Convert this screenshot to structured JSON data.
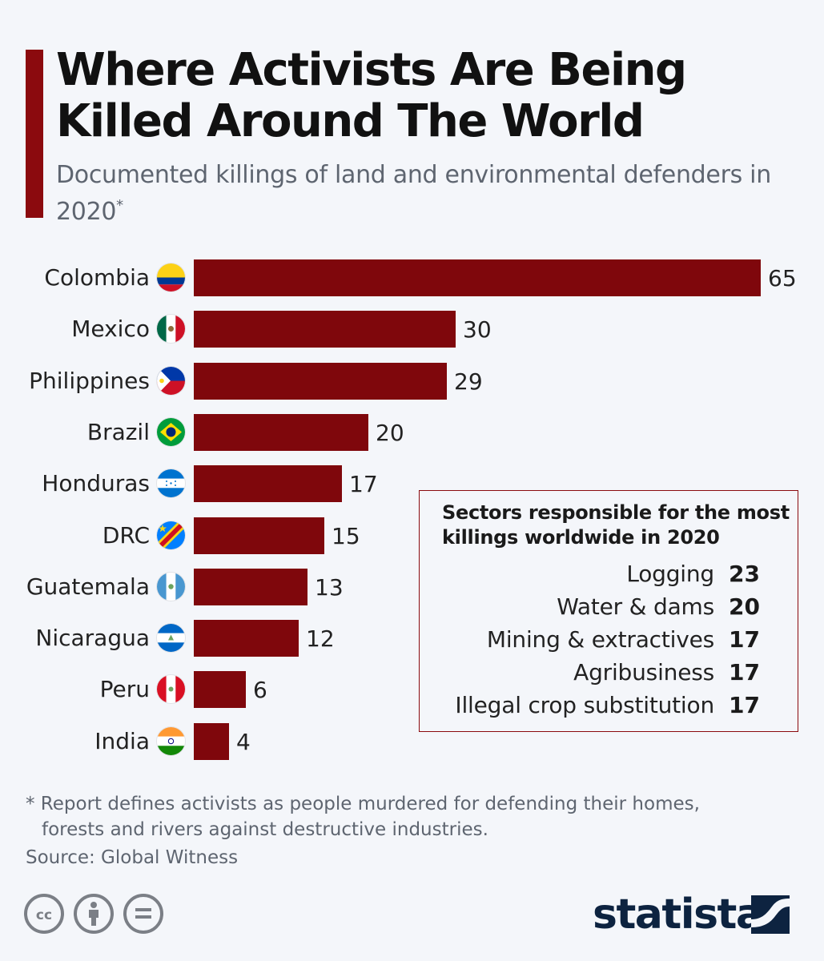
{
  "header": {
    "title": "Where Activists Are Being Killed Around The World",
    "subtitle": "Documented killings of land and environmental defenders in 2020",
    "subtitle_mark": "*"
  },
  "colors": {
    "bar": "#7f070c",
    "accent": "#8b0a0e",
    "muted_text": "#5e6570",
    "brand": "#0d2340"
  },
  "chart_data": {
    "type": "bar",
    "orientation": "horizontal",
    "title": "Where Activists Are Being Killed Around The World",
    "subtitle": "Documented killings of land and environmental defenders in 2020*",
    "xlabel": "",
    "ylabel": "",
    "xlim": [
      0,
      65
    ],
    "grid": false,
    "categories": [
      "Colombia",
      "Mexico",
      "Philippines",
      "Brazil",
      "Honduras",
      "DRC",
      "Guatemala",
      "Nicaragua",
      "Peru",
      "India"
    ],
    "values": [
      65,
      30,
      29,
      20,
      17,
      15,
      13,
      12,
      6,
      4
    ],
    "flags": [
      "colombia-flag-icon",
      "mexico-flag-icon",
      "philippines-flag-icon",
      "brazil-flag-icon",
      "honduras-flag-icon",
      "drc-flag-icon",
      "guatemala-flag-icon",
      "nicaragua-flag-icon",
      "peru-flag-icon",
      "india-flag-icon"
    ]
  },
  "sectors": {
    "title": "Sectors responsible for the most killings worldwide in 2020",
    "items": [
      {
        "name": "Logging",
        "value": "23"
      },
      {
        "name": "Water & dams",
        "value": "20"
      },
      {
        "name": "Mining & extractives",
        "value": "17"
      },
      {
        "name": "Agribusiness",
        "value": "17"
      },
      {
        "name": "Illegal crop substitution",
        "value": "17"
      }
    ]
  },
  "footer": {
    "footnote_line1": "* Report defines activists as people murdered for defending their homes,",
    "footnote_line2": "forests and rivers against destructive industries.",
    "source": "Source: Global Witness",
    "license_icons": [
      "cc-icon",
      "by-icon",
      "nd-icon"
    ],
    "brand": "statista"
  }
}
